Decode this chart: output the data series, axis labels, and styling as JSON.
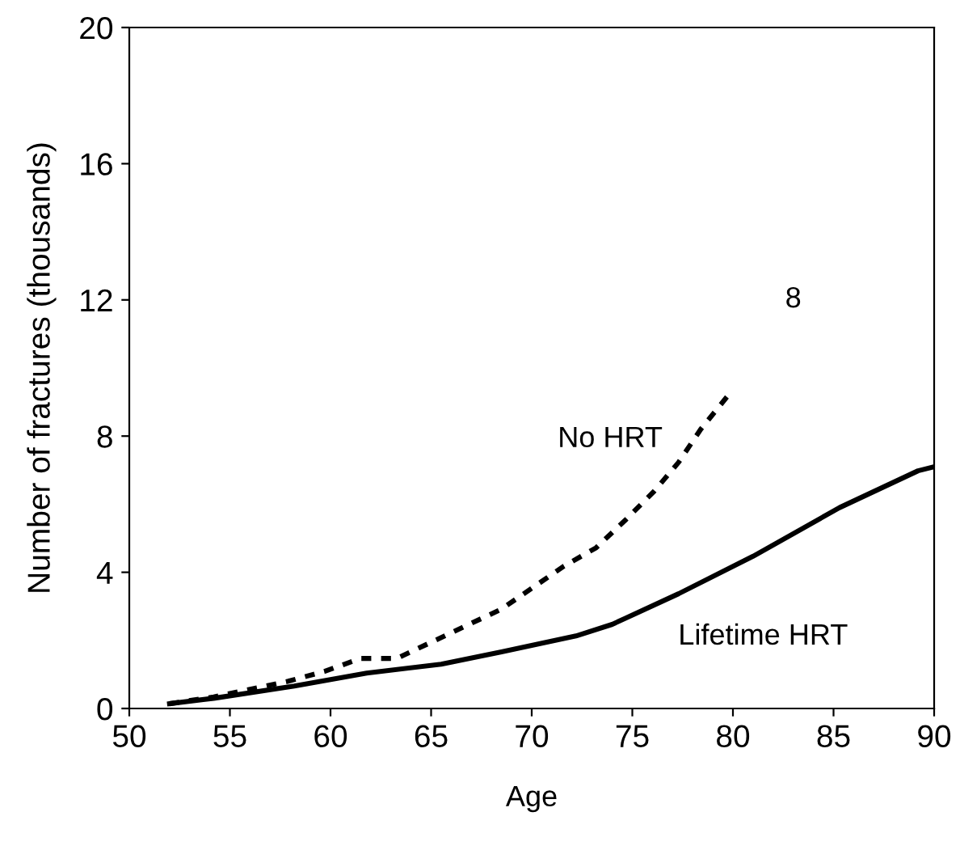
{
  "chart_data": {
    "type": "line",
    "xlabel": "Age",
    "ylabel": "Number of fractures (thousands)",
    "xlim": [
      50,
      90
    ],
    "xticks": [
      50,
      55,
      60,
      65,
      70,
      75,
      80,
      85,
      90
    ],
    "ylim": [
      0,
      20
    ],
    "yticks": [
      0,
      4,
      8,
      12,
      16,
      20
    ],
    "grid": false,
    "legend": false,
    "marker": "none",
    "annotations": [
      "8"
    ],
    "series": [
      {
        "name": "No HRT",
        "color": "#000000",
        "line_style": "dashed",
        "x": [
          52,
          54.2,
          57.9,
          59.7,
          61.5,
          63.3,
          68.5,
          71.6,
          73.2,
          74.7,
          76.1,
          77.3,
          78.4,
          79.7
        ],
        "values": [
          0.14,
          0.34,
          0.8,
          1.09,
          1.47,
          1.47,
          2.92,
          4.18,
          4.72,
          5.56,
          6.39,
          7.23,
          8.2,
          9.15
        ]
      },
      {
        "name": "Lifetime HRT",
        "color": "#000000",
        "line_style": "solid",
        "x": [
          52,
          54.2,
          58.2,
          61.8,
          65.5,
          68.5,
          72.2,
          74,
          77.3,
          81,
          85.3,
          89.2,
          90
        ],
        "values": [
          0.14,
          0.3,
          0.66,
          1.04,
          1.3,
          1.66,
          2.13,
          2.47,
          3.37,
          4.47,
          5.9,
          6.98,
          7.1
        ]
      }
    ]
  }
}
